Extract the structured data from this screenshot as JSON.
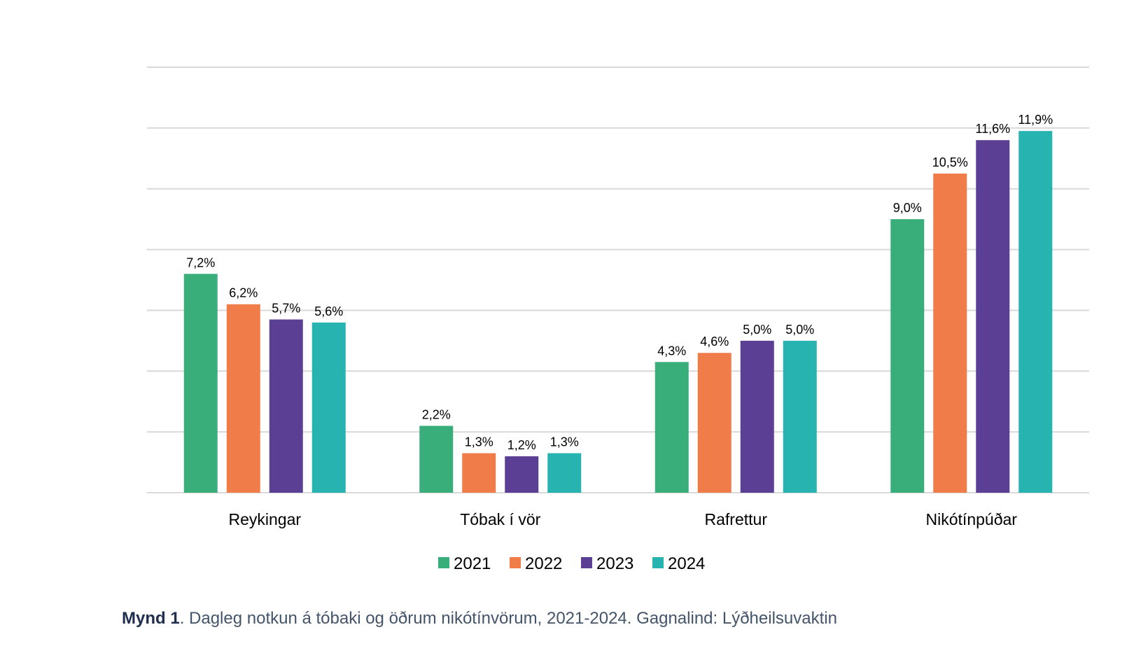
{
  "chart_data": {
    "type": "bar",
    "categories": [
      "Reykingar",
      "Tóbak í vör",
      "Rafrettur",
      "Nikótínpúðar"
    ],
    "series": [
      {
        "name": "2021",
        "color": "#3aae7a",
        "values": [
          7.2,
          2.2,
          4.3,
          9.0
        ],
        "labels": [
          "7,2%",
          "2,2%",
          "4,3%",
          "9,0%"
        ]
      },
      {
        "name": "2022",
        "color": "#f07c4a",
        "values": [
          6.2,
          1.3,
          4.6,
          10.5
        ],
        "labels": [
          "6,2%",
          "1,3%",
          "4,6%",
          "10,5%"
        ]
      },
      {
        "name": "2023",
        "color": "#5b3f94",
        "values": [
          5.7,
          1.2,
          5.0,
          11.6
        ],
        "labels": [
          "5,7%",
          "1,2%",
          "5,0%",
          "11,6%"
        ]
      },
      {
        "name": "2024",
        "color": "#27b3b0",
        "values": [
          5.6,
          1.3,
          5.0,
          11.9
        ],
        "labels": [
          "5,6%",
          "1,3%",
          "5,0%",
          "11,9%"
        ]
      }
    ],
    "ylim": [
      0,
      14
    ],
    "grid": true,
    "legend": "bottom"
  },
  "caption": {
    "label": "Mynd 1",
    "text": ". Dagleg notkun á tóbaki og öðrum nikótínvörum, 2021-2024. Gagnalind: Lýðheilsuvaktin"
  }
}
